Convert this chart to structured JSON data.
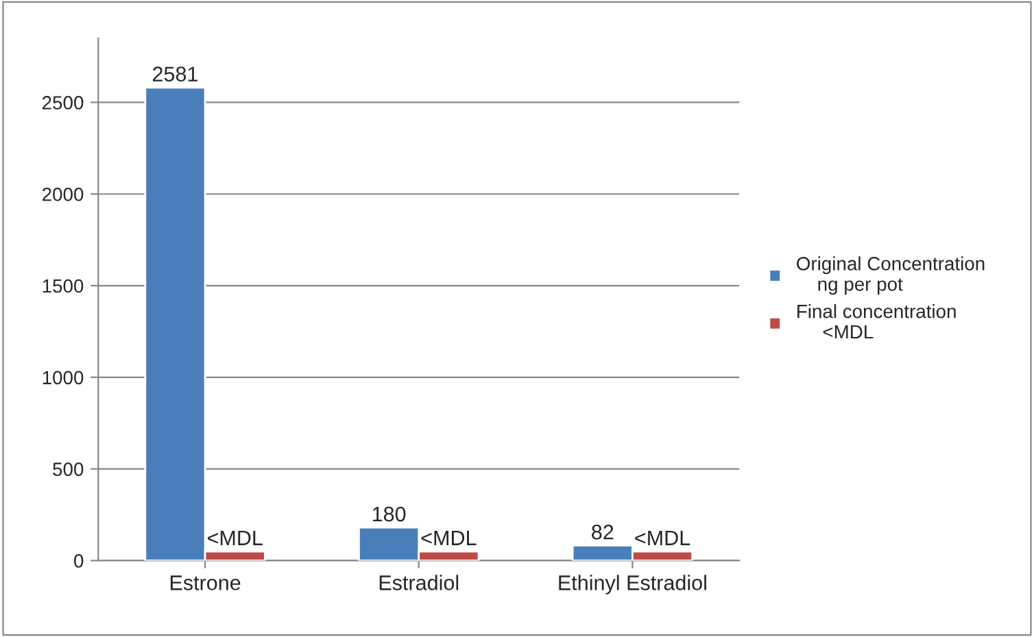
{
  "chart_data": {
    "type": "bar",
    "categories": [
      "Estrone",
      "Estradiol",
      "Ethinyl Estradiol"
    ],
    "series": [
      {
        "name": "Original Concentration\n    ng per pot",
        "color": "#4a7ebb",
        "values": [
          2581,
          180,
          82
        ],
        "value_labels": [
          "2581",
          "180",
          "82"
        ]
      },
      {
        "name": "Final concentration\n     <MDL",
        "color": "#be4b48",
        "values": [
          50,
          50,
          50
        ],
        "value_labels": [
          "<MDL",
          "<MDL",
          "<MDL"
        ]
      }
    ],
    "ylim": [
      0,
      2850
    ],
    "yticks": [
      0,
      500,
      1000,
      1500,
      2000,
      2500
    ],
    "grid": "y",
    "legend": "right"
  }
}
